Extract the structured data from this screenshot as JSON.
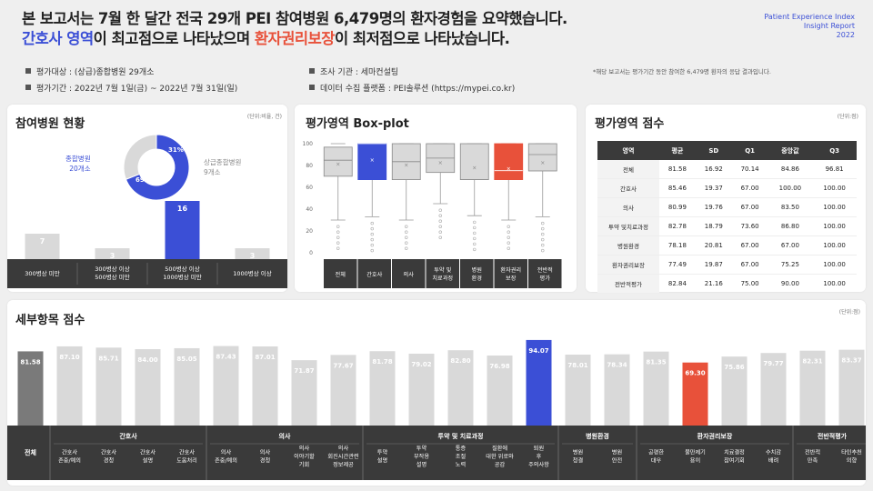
{
  "header": {
    "line1": "본 보고서는 7월 한 달간 전국 29개 PEI 참여병원 6,479명의 환자경험을 요약했습니다.",
    "line2_blue": "간호사 영역",
    "line2_mid": "이 최고점으로 나타났으며 ",
    "line2_red": "환자권리보장",
    "line2_end": "이 최저점으로 나타났습니다.",
    "brand1": "Patient Experience Index",
    "brand2": "Insight Report",
    "brand3": "2022"
  },
  "meta": {
    "target": "평가대상 : (상급)종합병원 29개소",
    "period": "평가기간 : 2022년 7월 1일(금) ~ 2022년 7월 31일(일)",
    "agency": "조사 기관 : 세마컨설팅",
    "platform": "데이터 수집 플랫폼 : PEI솔루션 (https://mypei.co.kr)",
    "note": "*해당 보고서는 평가기간 동안 참여한 6,479명 환자의 응답 결과입니다."
  },
  "panel_participation": {
    "title": "참여병원 현황",
    "unit": "(단위:비율, 건)",
    "donut_left_label1": "종합병원",
    "donut_left_label2": "20개소",
    "donut_right_label1": "상급종합병원",
    "donut_right_label2": "9개소",
    "pct_main": "69%",
    "pct_other": "31%"
  },
  "panel_box": {
    "title": "평가영역 Box-plot"
  },
  "panel_scores": {
    "title": "평가영역 점수",
    "unit": "(단위:점)",
    "headers": [
      "영역",
      "평균",
      "SD",
      "Q1",
      "중앙값",
      "Q3"
    ],
    "rows": [
      [
        "전체",
        "81.58",
        "16.92",
        "70.14",
        "84.86",
        "96.81"
      ],
      [
        "간호사",
        "85.46",
        "19.37",
        "67.00",
        "100.00",
        "100.00"
      ],
      [
        "의사",
        "80.99",
        "19.76",
        "67.00",
        "83.50",
        "100.00"
      ],
      [
        "투약 및치료과정",
        "82.78",
        "18.79",
        "73.60",
        "86.80",
        "100.00"
      ],
      [
        "병원환경",
        "78.18",
        "20.81",
        "67.00",
        "67.00",
        "100.00"
      ],
      [
        "환자권리보장",
        "77.49",
        "19.87",
        "67.00",
        "75.25",
        "100.00"
      ],
      [
        "전반적평가",
        "82.84",
        "21.16",
        "75.00",
        "90.00",
        "100.00"
      ]
    ]
  },
  "panel_detail": {
    "title": "세부항목 점수",
    "unit": "(단위:점)"
  },
  "chart_data": [
    {
      "type": "bar",
      "categories": [
        "300병상 미만",
        "300병상 이상 500병상 미만",
        "500병상 이상 1000병상 미만",
        "1000병상 이상"
      ],
      "values": [
        7,
        3,
        16,
        3
      ],
      "colors": [
        "#d9d9d9",
        "#d9d9d9",
        "#3b4fd6",
        "#d9d9d9"
      ]
    },
    {
      "type": "pie",
      "categories": [
        "종합병원",
        "상급종합병원"
      ],
      "values": [
        69,
        31
      ],
      "colors": [
        "#3b4fd6",
        "#d9d9d9"
      ]
    },
    {
      "type": "box",
      "categories": [
        "전체",
        "간호사",
        "의사",
        "투약 및 치료과정",
        "병원 환경",
        "환자권리 보장",
        "전반적 평가"
      ],
      "ylim": [
        0,
        100
      ],
      "yticks": [
        0,
        20,
        40,
        60,
        80,
        100
      ],
      "q1": [
        70.14,
        67,
        67,
        73.6,
        67,
        67,
        75
      ],
      "median": [
        84.86,
        100,
        83.5,
        86.8,
        67,
        75.25,
        90
      ],
      "q3": [
        96.81,
        100,
        100,
        100,
        100,
        100,
        100
      ],
      "mean": [
        81.58,
        85.46,
        80.99,
        82.78,
        78.18,
        77.49,
        82.84
      ],
      "whisker_low": [
        30,
        33,
        30,
        45,
        34,
        30,
        33
      ],
      "colors": [
        "#d9d9d9",
        "#3b4fd6",
        "#d9d9d9",
        "#d9d9d9",
        "#d9d9d9",
        "#e8513a",
        "#d9d9d9"
      ]
    },
    {
      "type": "bar",
      "ylim": [
        0,
        100
      ],
      "groups": [
        {
          "label": "간호사",
          "span": 4
        },
        {
          "label": "의사",
          "span": 4
        },
        {
          "label": "투약 및 치료과정",
          "span": 5
        },
        {
          "label": "병원환경",
          "span": 2
        },
        {
          "label": "환자권리보장",
          "span": 4
        },
        {
          "label": "전반적평가",
          "span": 2
        }
      ],
      "first_label": "전체",
      "categories": [
        "간호사 존중/예의",
        "간호사 경청",
        "간호사 설명",
        "간호사 도움처리",
        "의사 존중/예의",
        "의사 경청",
        "의사 이야기할 기회",
        "의사 회진시간관련 정보제공",
        "투약 설명",
        "투약 부작용 설명",
        "통증 조절 노력",
        "질환에 대한 위로와 공감",
        "퇴원 후 주의사항",
        "병원 청결",
        "병원 안전",
        "공평한 대우",
        "불만제기 용이",
        "치료결정 참여기회",
        "수치감 배려",
        "전반적 만족",
        "타인추천 의향"
      ],
      "values": [
        81.58,
        87.1,
        85.71,
        84.0,
        85.05,
        87.43,
        87.01,
        71.87,
        77.67,
        81.78,
        79.02,
        82.8,
        76.98,
        94.07,
        78.01,
        78.34,
        81.35,
        69.3,
        75.86,
        79.77,
        82.31,
        83.37
      ],
      "labels": [
        "81.58",
        "87.10",
        "85.71",
        "84.00",
        "85.05",
        "87.43",
        "87.01",
        "71.87",
        "77.67",
        "81.78",
        "79.02",
        "82.80",
        "76.98",
        "94.07",
        "78.01",
        "78.34",
        "81.35",
        "69.30",
        "75.86",
        "79.77",
        "82.31",
        "83.37"
      ],
      "colors": [
        "#7a7a7a",
        "#d9d9d9",
        "#d9d9d9",
        "#d9d9d9",
        "#d9d9d9",
        "#d9d9d9",
        "#d9d9d9",
        "#d9d9d9",
        "#d9d9d9",
        "#d9d9d9",
        "#d9d9d9",
        "#d9d9d9",
        "#d9d9d9",
        "#3b4fd6",
        "#d9d9d9",
        "#d9d9d9",
        "#d9d9d9",
        "#e8513a",
        "#d9d9d9",
        "#d9d9d9",
        "#d9d9d9",
        "#d9d9d9"
      ]
    }
  ]
}
